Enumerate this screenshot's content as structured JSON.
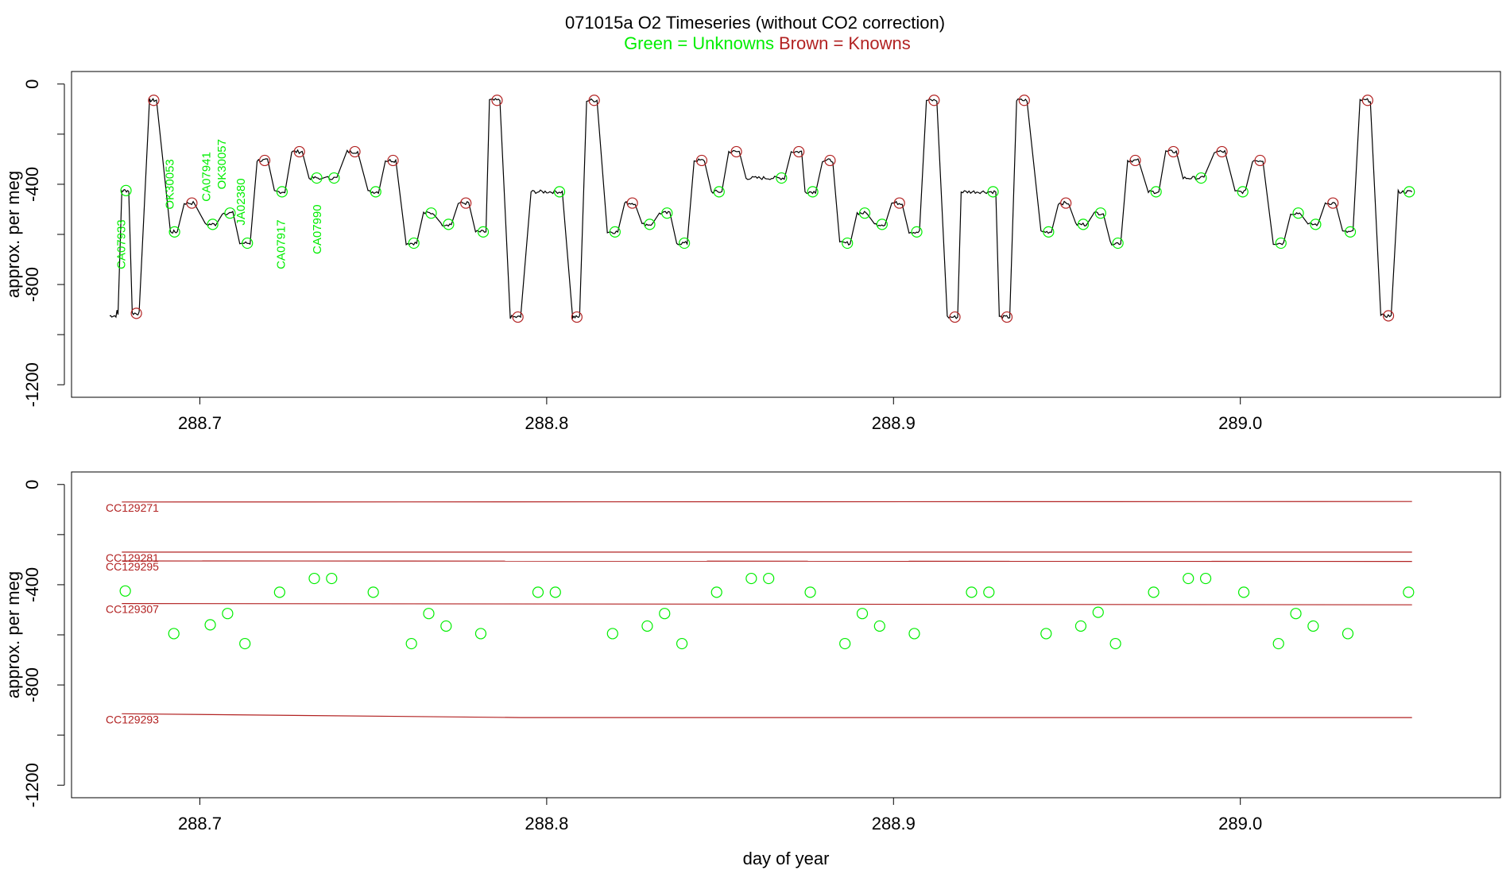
{
  "header": {
    "title": "071015a   O2 Timeseries (without CO2 correction)",
    "legend_green": "Green = Unknowns",
    "legend_brown": "Brown = Knowns"
  },
  "colors": {
    "unknown": "#00ee00",
    "known": "#b22222",
    "trace": "#000000"
  },
  "chart_data": [
    {
      "type": "line",
      "panel": "top",
      "title": "071015a   O2 Timeseries (without CO2 correction)",
      "xlabel": "",
      "ylabel": "approx. per meg",
      "xlim": [
        288.663,
        289.075
      ],
      "ylim": [
        -1250,
        50
      ],
      "x_ticks": [
        288.7,
        288.8,
        288.9,
        289.0
      ],
      "x_tick_labels": [
        "288.7",
        "288.8",
        "288.9",
        "289.0"
      ],
      "y_ticks": [
        0,
        -400,
        -800,
        -1200
      ],
      "y_tick_labels": [
        "0",
        "-400",
        "-800",
        "-1200"
      ],
      "trace": {
        "start": [
          288.674,
          -925
        ],
        "levels": [
          [
            288.6775,
            288.6795,
            -425,
            "u"
          ],
          [
            288.6805,
            288.6825,
            -915,
            "k"
          ],
          [
            288.6855,
            288.6875,
            -65,
            "k"
          ],
          [
            288.6915,
            288.6935,
            -590,
            "u"
          ],
          [
            288.6955,
            288.6985,
            -475,
            "k"
          ],
          [
            288.7015,
            288.7045,
            -560,
            "u"
          ],
          [
            288.7065,
            288.7095,
            -515,
            "u"
          ],
          [
            288.7115,
            288.7145,
            -635,
            "u"
          ],
          [
            288.7165,
            288.7195,
            -305,
            "k"
          ],
          [
            288.7215,
            288.7245,
            -430,
            "u"
          ],
          [
            288.7265,
            288.7295,
            -270,
            "k"
          ],
          [
            288.7315,
            288.7345,
            -375,
            "u"
          ],
          [
            288.7365,
            288.7395,
            -375,
            "u"
          ],
          [
            288.7425,
            288.7455,
            -270,
            "k"
          ],
          [
            288.7485,
            288.7515,
            -430,
            "u"
          ],
          [
            288.7535,
            288.7565,
            -305,
            "k"
          ],
          [
            288.7595,
            288.7625,
            -635,
            "u"
          ],
          [
            288.7645,
            288.7675,
            -515,
            "u"
          ],
          [
            288.7695,
            288.7725,
            -560,
            "u"
          ],
          [
            288.7745,
            288.7775,
            -475,
            "k"
          ],
          [
            288.7795,
            288.7825,
            -590,
            "u"
          ],
          [
            288.7835,
            288.7865,
            -65,
            "k"
          ],
          [
            288.7895,
            288.7925,
            -930,
            "k"
          ],
          [
            288.7955,
            288.8045,
            -430,
            "u"
          ],
          [
            288.8075,
            288.8095,
            -930,
            "k"
          ],
          [
            288.8115,
            288.8145,
            -65,
            "k"
          ],
          [
            288.8175,
            288.8205,
            -590,
            "u"
          ],
          [
            288.8225,
            288.8255,
            -475,
            "k"
          ],
          [
            288.8275,
            288.8305,
            -560,
            "u"
          ],
          [
            288.8325,
            288.8355,
            -515,
            "u"
          ],
          [
            288.8375,
            288.8405,
            -635,
            "u"
          ],
          [
            288.8425,
            288.8455,
            -305,
            "k"
          ],
          [
            288.8475,
            288.8505,
            -430,
            "u"
          ],
          [
            288.8525,
            288.8555,
            -270,
            "k"
          ],
          [
            288.8575,
            288.8685,
            -375,
            "u"
          ],
          [
            288.8705,
            288.8735,
            -270,
            "k"
          ],
          [
            288.8745,
            288.8775,
            -430,
            "u"
          ],
          [
            288.8795,
            288.8825,
            -305,
            "k"
          ],
          [
            288.8845,
            288.8875,
            -635,
            "u"
          ],
          [
            288.8895,
            288.8925,
            -515,
            "u"
          ],
          [
            288.8945,
            288.8975,
            -560,
            "u"
          ],
          [
            288.8995,
            288.9025,
            -475,
            "k"
          ],
          [
            288.9045,
            288.9075,
            -590,
            "u"
          ],
          [
            288.9095,
            288.9125,
            -65,
            "k"
          ],
          [
            288.9155,
            288.9185,
            -930,
            "k"
          ],
          [
            288.9195,
            288.9295,
            -430,
            "u"
          ],
          [
            288.9305,
            288.9335,
            -930,
            "k"
          ],
          [
            288.9355,
            288.9385,
            -65,
            "k"
          ],
          [
            288.9425,
            288.9455,
            -590,
            "u"
          ],
          [
            288.9475,
            288.9505,
            -475,
            "k"
          ],
          [
            288.9525,
            288.9555,
            -560,
            "u"
          ],
          [
            288.9575,
            288.9605,
            -515,
            "u"
          ],
          [
            288.9625,
            288.9655,
            -635,
            "u"
          ],
          [
            288.9675,
            288.9705,
            -305,
            "k"
          ],
          [
            288.9735,
            288.9765,
            -430,
            "u"
          ],
          [
            288.9785,
            288.9815,
            -270,
            "k"
          ],
          [
            288.9835,
            288.9895,
            -375,
            "u"
          ],
          [
            288.9925,
            288.9955,
            -270,
            "k"
          ],
          [
            288.9985,
            289.0015,
            -430,
            "u"
          ],
          [
            289.0035,
            289.0065,
            -305,
            "k"
          ],
          [
            289.0095,
            289.0125,
            -635,
            "u"
          ],
          [
            289.0145,
            289.0175,
            -515,
            "u"
          ],
          [
            289.0195,
            289.0225,
            -560,
            "u"
          ],
          [
            289.0245,
            289.0275,
            -475,
            "k"
          ],
          [
            289.0295,
            289.0325,
            -590,
            "u"
          ],
          [
            289.0345,
            289.0375,
            -65,
            "k"
          ],
          [
            289.0405,
            289.0435,
            -925,
            "k"
          ],
          [
            289.0455,
            289.0495,
            -430,
            "u"
          ]
        ]
      },
      "unknown_labels": [
        {
          "text": "CA07933",
          "x": 288.6785,
          "y": -640
        },
        {
          "text": "OK30053",
          "x": 288.6925,
          "y": -400
        },
        {
          "text": "CA07941",
          "x": 288.703,
          "y": -370
        },
        {
          "text": "OK30057",
          "x": 288.7075,
          "y": -320
        },
        {
          "text": "JA02380",
          "x": 288.713,
          "y": -470
        },
        {
          "text": "CA07917",
          "x": 288.7245,
          "y": -640
        },
        {
          "text": "CA07990",
          "x": 288.735,
          "y": -580
        }
      ]
    },
    {
      "type": "scatter",
      "panel": "bottom",
      "xlabel": "day of year",
      "ylabel": "approx. per meg",
      "xlim": [
        288.663,
        289.075
      ],
      "ylim": [
        -1250,
        50
      ],
      "x_ticks": [
        288.7,
        288.8,
        288.9,
        289.0
      ],
      "x_tick_labels": [
        "288.7",
        "288.8",
        "288.9",
        "289.0"
      ],
      "y_ticks": [
        0,
        -400,
        -800,
        -1200
      ],
      "y_tick_labels": [
        "0",
        "-400",
        "-800",
        "-1200"
      ],
      "standards": [
        {
          "name": "CC129271",
          "x": [
            288.6775,
            289.0495
          ],
          "y": [
            -70,
            -68
          ]
        },
        {
          "name": "CC129281",
          "x": [
            288.6775,
            289.0495
          ],
          "y": [
            -270,
            -270
          ]
        },
        {
          "name": "CC129295",
          "x": [
            288.6775,
            289.0495
          ],
          "y": [
            -305,
            -307
          ]
        },
        {
          "name": "CC129307",
          "x": [
            288.6775,
            289.0495
          ],
          "y": [
            -475,
            -480
          ]
        },
        {
          "name": "CC129293",
          "x": [
            288.6775,
            288.7925,
            289.0495
          ],
          "y": [
            -915,
            -930,
            -930
          ]
        }
      ],
      "unknowns": {
        "x": [
          288.6785,
          288.6925,
          288.703,
          288.708,
          288.713,
          288.723,
          288.733,
          288.738,
          288.75,
          288.761,
          288.766,
          288.771,
          288.781,
          288.7975,
          288.8025,
          288.819,
          288.829,
          288.834,
          288.839,
          288.849,
          288.859,
          288.864,
          288.876,
          288.886,
          288.891,
          288.896,
          288.906,
          288.9225,
          288.9275,
          288.944,
          288.954,
          288.959,
          288.964,
          288.975,
          288.985,
          288.99,
          289.001,
          289.011,
          289.016,
          289.021,
          289.031,
          289.0485
        ],
        "y": [
          -425,
          -595,
          -560,
          -515,
          -635,
          -430,
          -375,
          -375,
          -430,
          -635,
          -515,
          -565,
          -595,
          -430,
          -430,
          -595,
          -565,
          -515,
          -635,
          -430,
          -375,
          -375,
          -430,
          -635,
          -515,
          -565,
          -595,
          -430,
          -430,
          -595,
          -565,
          -510,
          -635,
          -430,
          -375,
          -375,
          -430,
          -635,
          -515,
          -565,
          -595,
          -430
        ]
      }
    }
  ]
}
